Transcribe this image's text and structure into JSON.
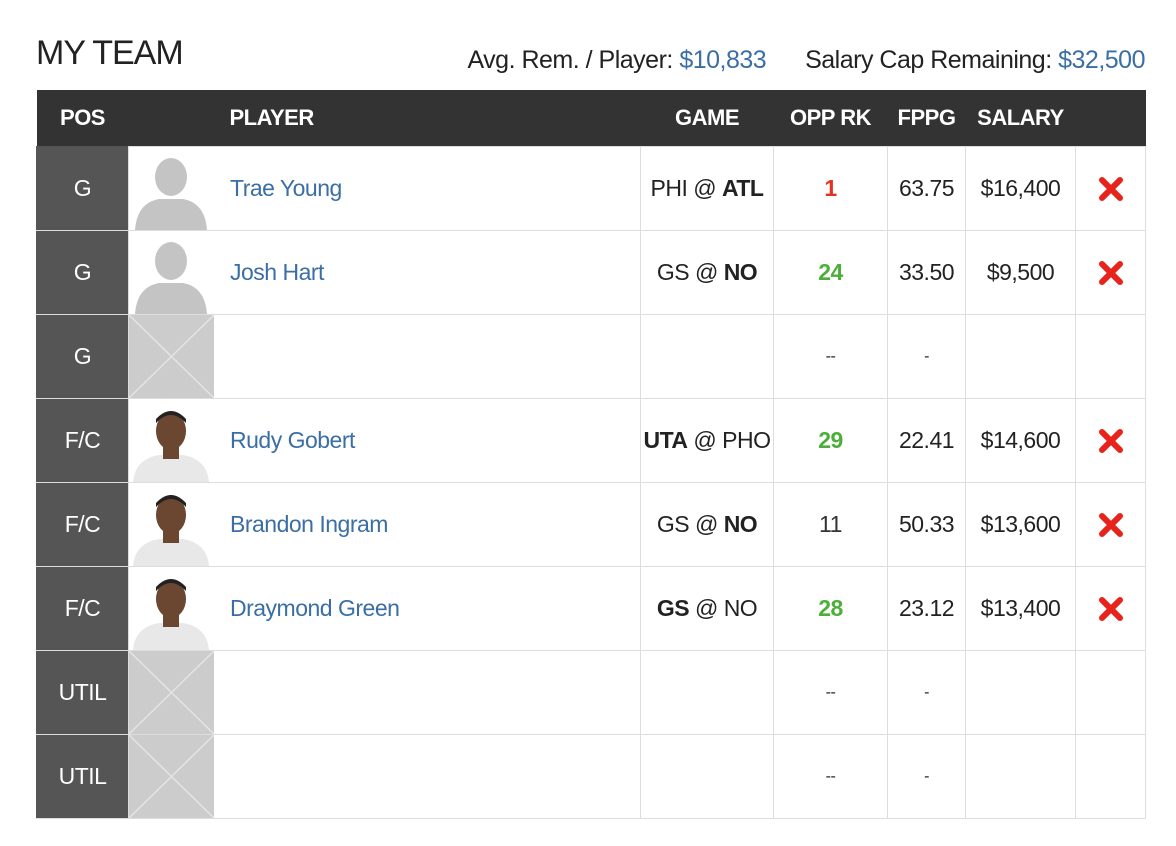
{
  "header": {
    "title": "MY TEAM",
    "avg_label": "Avg. Rem. / Player:",
    "avg_value": "$10,833",
    "cap_label": "Salary Cap Remaining:",
    "cap_value": "$32,500"
  },
  "table": {
    "columns": [
      "POS",
      "PLAYER",
      "GAME",
      "OPP RK",
      "FPPG",
      "SALARY"
    ],
    "rows": [
      {
        "pos": "G",
        "avatar": "silhouette",
        "player": "Trae Young",
        "game": {
          "away": "PHI",
          "sep": "@",
          "home": "ATL",
          "bold": "home"
        },
        "opp_rk": "1",
        "rk_color": "#e53222",
        "fppg": "63.75",
        "salary": "$16,400"
      },
      {
        "pos": "G",
        "avatar": "silhouette",
        "player": "Josh Hart",
        "game": {
          "away": "GS",
          "sep": "@",
          "home": "NO",
          "bold": "home"
        },
        "opp_rk": "24",
        "rk_color": "#4caf3a",
        "fppg": "33.50",
        "salary": "$9,500"
      },
      {
        "pos": "G",
        "avatar": "empty",
        "opp_rk": "--",
        "fppg": "-"
      },
      {
        "pos": "F/C",
        "avatar": "photo",
        "player": "Rudy Gobert",
        "game": {
          "away": "UTA",
          "sep": "@",
          "home": "PHO",
          "bold": "away"
        },
        "opp_rk": "29",
        "rk_color": "#4caf3a",
        "fppg": "22.41",
        "salary": "$14,600"
      },
      {
        "pos": "F/C",
        "avatar": "photo",
        "player": "Brandon Ingram",
        "game": {
          "away": "GS",
          "sep": "@",
          "home": "NO",
          "bold": "home"
        },
        "opp_rk": "11",
        "rk_color": "#333333",
        "fppg": "50.33",
        "salary": "$13,600"
      },
      {
        "pos": "F/C",
        "avatar": "photo",
        "player": "Draymond Green",
        "game": {
          "away": "GS",
          "sep": "@",
          "home": "NO",
          "bold": "away"
        },
        "opp_rk": "28",
        "rk_color": "#4caf3a",
        "fppg": "23.12",
        "salary": "$13,400"
      },
      {
        "pos": "UTIL",
        "avatar": "empty",
        "opp_rk": "--",
        "fppg": "-"
      },
      {
        "pos": "UTIL",
        "avatar": "empty",
        "opp_rk": "--",
        "fppg": "-"
      }
    ]
  }
}
